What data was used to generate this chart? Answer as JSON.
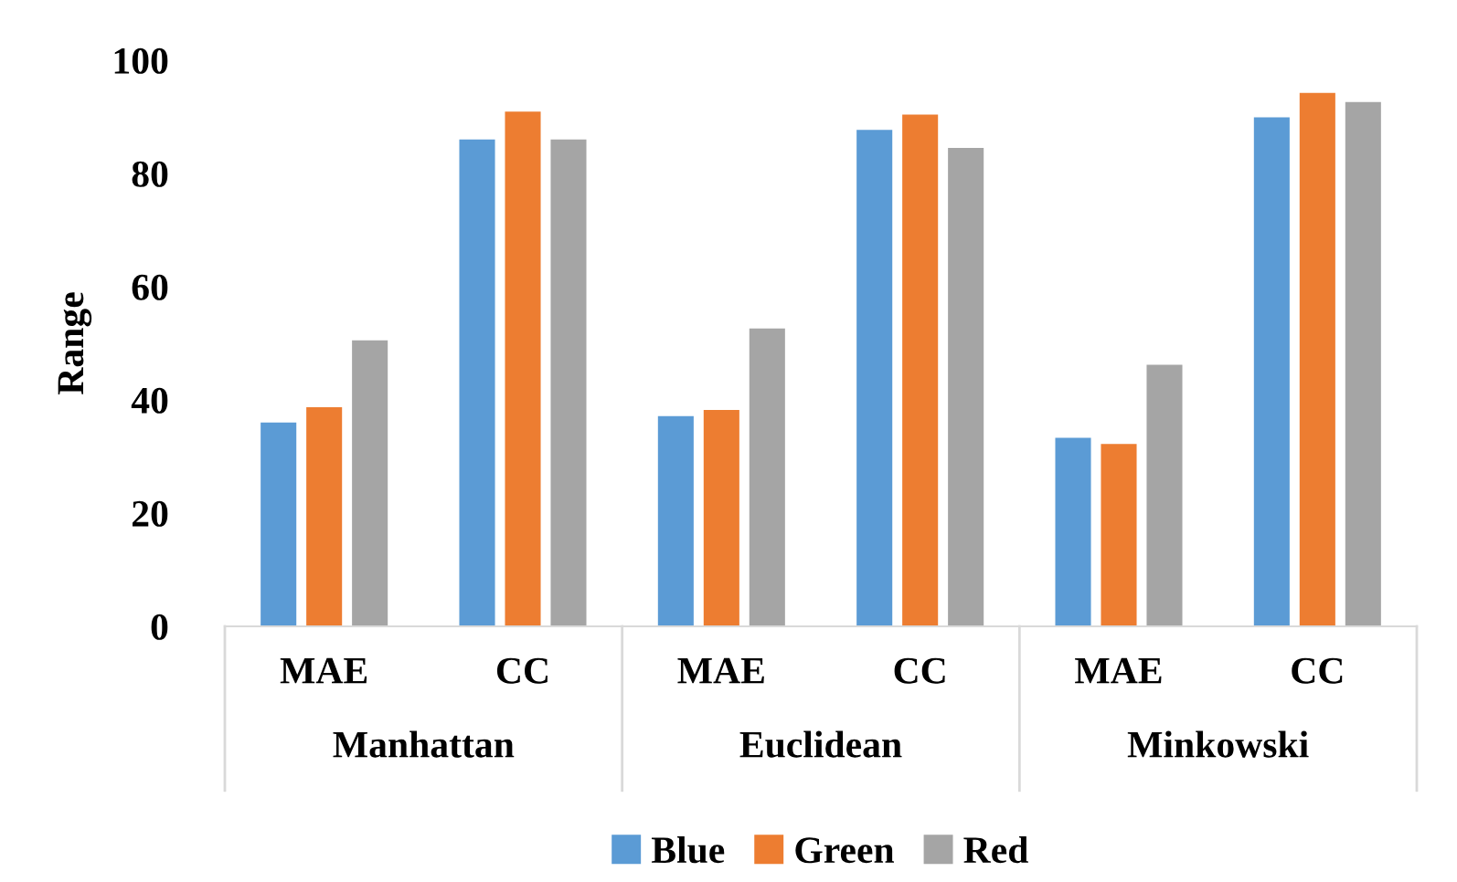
{
  "chart_data": {
    "type": "bar",
    "ylabel": "Range",
    "categories": [
      "MAE",
      "CC",
      "MAE",
      "CC",
      "MAE",
      "CC"
    ],
    "annotations": [
      "Manhattan",
      "Euclidean",
      "Minkowski"
    ],
    "series": [
      {
        "name": "Blue",
        "color": "#5b9bd5",
        "values": [
          36.2,
          86.2,
          37.3,
          87.9,
          33.5,
          90.1
        ]
      },
      {
        "name": "Green",
        "color": "#ed7d31",
        "values": [
          38.9,
          91.1,
          38.4,
          90.6,
          32.4,
          94.4
        ]
      },
      {
        "name": "Red",
        "color": "#a5a5a5",
        "values": [
          50.7,
          86.2,
          52.8,
          84.7,
          46.4,
          92.8
        ]
      }
    ],
    "ylim": [
      0,
      100
    ],
    "yticks": [
      0,
      20,
      40,
      60,
      80,
      100
    ],
    "grid": false,
    "legend": "bottom"
  }
}
